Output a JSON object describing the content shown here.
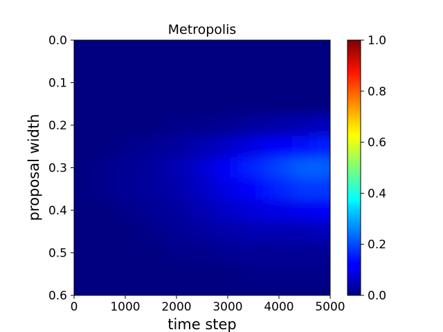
{
  "chart_data": {
    "type": "heatmap",
    "title": "Metropolis",
    "xlabel": "time step",
    "ylabel": "proposal width",
    "xlim": [
      0,
      5000
    ],
    "ylim": [
      0.0,
      0.6
    ],
    "y_inverted": true,
    "x_ticks": [
      "0",
      "1000",
      "2000",
      "3000",
      "4000",
      "5000"
    ],
    "y_ticks": [
      "0.0",
      "0.1",
      "0.2",
      "0.3",
      "0.4",
      "0.5",
      "0.6"
    ],
    "colormap": "jet",
    "colorbar": {
      "range": [
        0.0,
        1.0
      ],
      "ticks": [
        "0.0",
        "0.2",
        "0.4",
        "0.6",
        "0.8",
        "1.0"
      ]
    },
    "grid": false,
    "description_values": {
      "x": [
        0,
        500,
        1000,
        1500,
        2000,
        2500,
        3000,
        3500,
        4000,
        4500,
        5000
      ],
      "y": [
        0.0,
        0.05,
        0.1,
        0.15,
        0.2,
        0.25,
        0.3,
        0.35,
        0.4,
        0.45,
        0.5,
        0.55,
        0.6
      ],
      "z": [
        [
          0.0,
          0.0,
          0.0,
          0.0,
          0.0,
          0.0,
          0.0,
          0.0,
          0.0,
          0.0,
          0.0
        ],
        [
          0.0,
          0.0,
          0.0,
          0.0,
          0.0,
          0.0,
          0.0,
          0.0,
          0.0,
          0.0,
          0.0
        ],
        [
          0.0,
          0.0,
          0.0,
          0.0,
          0.0,
          0.0,
          0.0,
          0.0,
          0.0,
          0.0,
          0.0
        ],
        [
          0.0,
          0.0,
          0.0,
          0.0,
          0.0,
          0.0,
          0.0,
          0.0,
          0.0,
          0.0,
          0.0
        ],
        [
          0.0,
          0.0,
          0.0,
          0.0,
          0.01,
          0.01,
          0.02,
          0.03,
          0.04,
          0.05,
          0.06
        ],
        [
          0.0,
          0.0,
          0.01,
          0.02,
          0.03,
          0.05,
          0.07,
          0.1,
          0.12,
          0.14,
          0.16
        ],
        [
          0.0,
          0.01,
          0.02,
          0.03,
          0.05,
          0.08,
          0.12,
          0.16,
          0.19,
          0.22,
          0.22
        ],
        [
          0.0,
          0.01,
          0.02,
          0.03,
          0.04,
          0.07,
          0.1,
          0.13,
          0.16,
          0.18,
          0.18
        ],
        [
          0.0,
          0.0,
          0.01,
          0.02,
          0.03,
          0.05,
          0.07,
          0.09,
          0.1,
          0.11,
          0.12
        ],
        [
          0.0,
          0.0,
          0.0,
          0.01,
          0.02,
          0.03,
          0.04,
          0.05,
          0.05,
          0.05,
          0.06
        ],
        [
          0.0,
          0.0,
          0.0,
          0.0,
          0.01,
          0.01,
          0.02,
          0.02,
          0.02,
          0.02,
          0.02
        ],
        [
          0.0,
          0.0,
          0.0,
          0.0,
          0.0,
          0.0,
          0.0,
          0.01,
          0.01,
          0.01,
          0.01
        ],
        [
          0.0,
          0.0,
          0.0,
          0.0,
          0.0,
          0.0,
          0.0,
          0.0,
          0.0,
          0.0,
          0.0
        ]
      ]
    }
  }
}
